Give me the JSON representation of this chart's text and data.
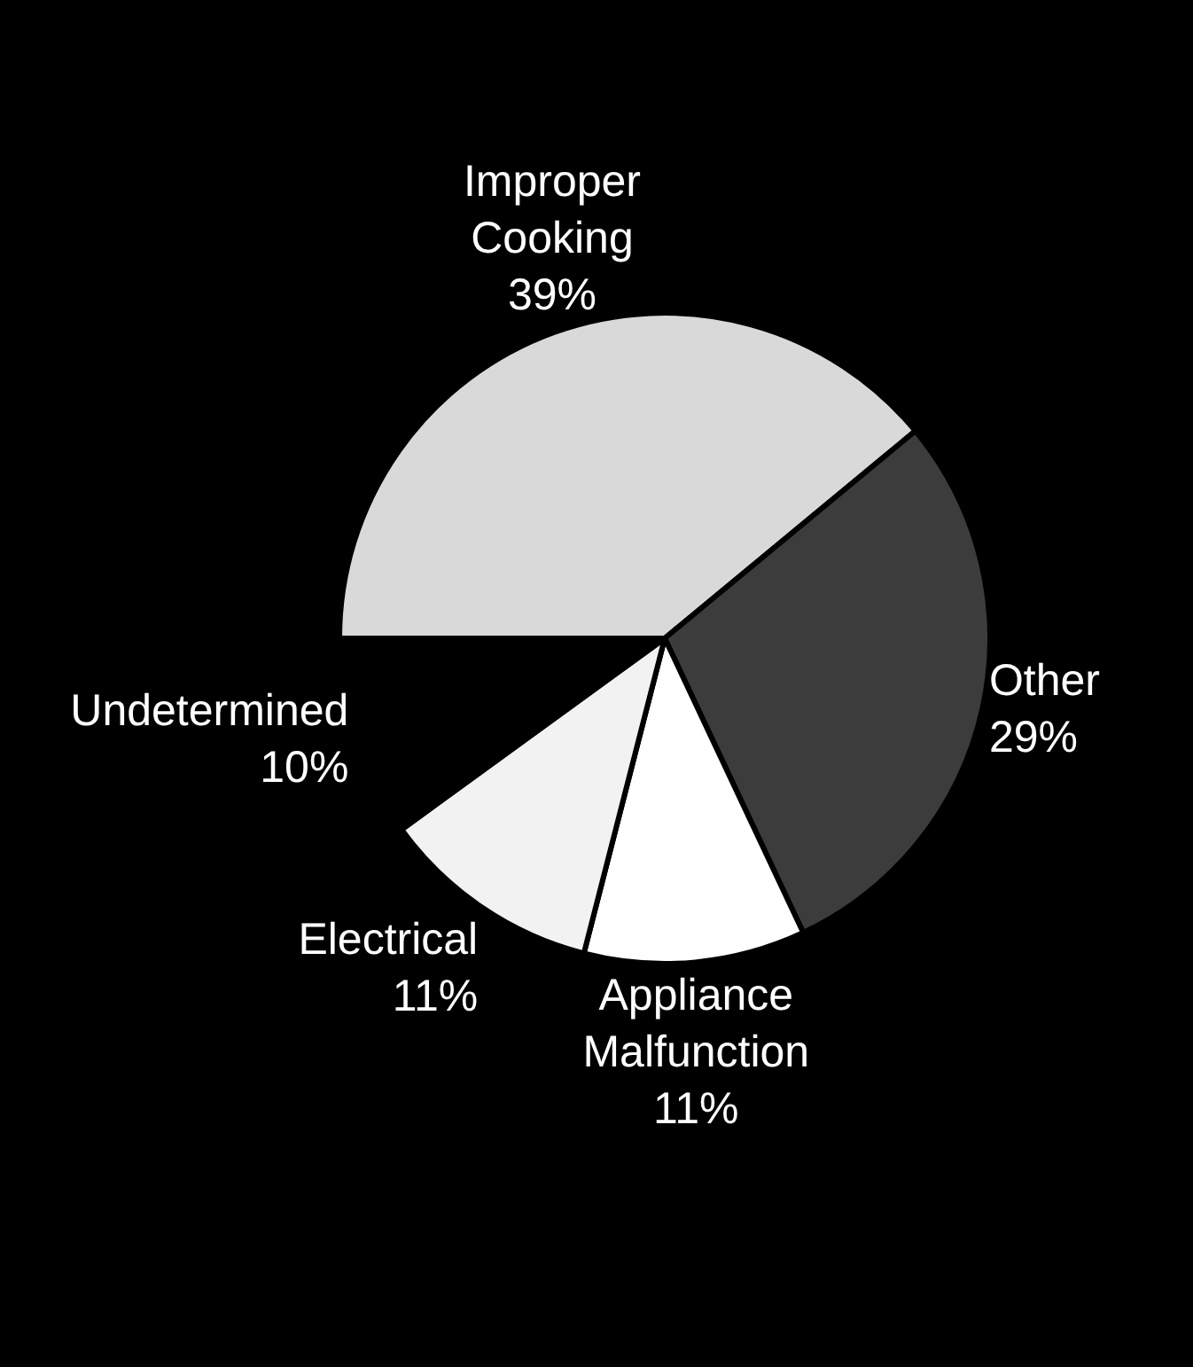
{
  "chart_data": {
    "type": "pie",
    "categories": [
      "Improper Cooking",
      "Other",
      "Appliance Malfunction",
      "Electrical",
      "Undetermined"
    ],
    "values": [
      39,
      29,
      11,
      11,
      10
    ],
    "value_labels": [
      "39%",
      "29%",
      "11%",
      "11%",
      "10%"
    ],
    "colors": [
      "#d9d9d9",
      "#3c3c3c",
      "#ffffff",
      "#f2f2f2",
      "#000000"
    ],
    "legend": false
  }
}
